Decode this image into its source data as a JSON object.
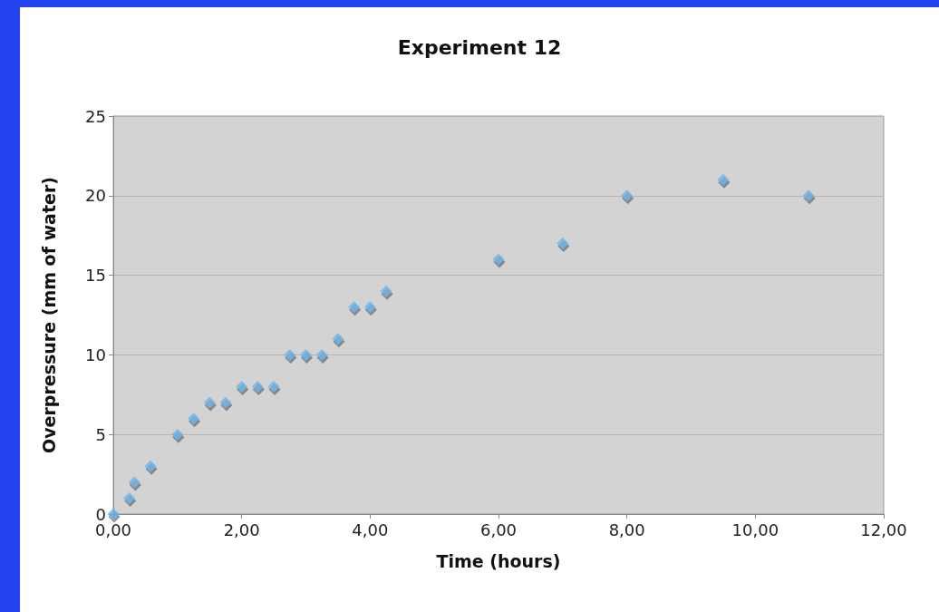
{
  "chart_data": {
    "type": "scatter",
    "title": "Experiment 12",
    "xlabel": "Time (hours)",
    "ylabel": "Overpressure (mm of water)",
    "x": [
      0,
      0.25,
      0.33,
      0.58,
      1,
      1.25,
      1.5,
      1.75,
      2,
      2.25,
      2.5,
      2.75,
      3,
      3.25,
      3.5,
      3.75,
      4,
      4.25,
      6,
      7,
      8,
      9.5,
      10.83
    ],
    "values": [
      0,
      1,
      2,
      3,
      5,
      6,
      7,
      7,
      8,
      8,
      8,
      10,
      10,
      10,
      11,
      13,
      13,
      14,
      16,
      17,
      20,
      21,
      20
    ],
    "color": "#6fb3e6",
    "marker": "diamond",
    "grid": "y",
    "xlim": [
      0,
      12
    ],
    "xticks": [
      {
        "value": 0,
        "label": "0,00"
      },
      {
        "value": 2,
        "label": "2,00"
      },
      {
        "value": 4,
        "label": "4,00"
      },
      {
        "value": 6,
        "label": "6,00"
      },
      {
        "value": 8,
        "label": "8,00"
      },
      {
        "value": 10,
        "label": "10,00"
      },
      {
        "value": 12,
        "label": "12,00"
      }
    ],
    "ylim": [
      0,
      25
    ],
    "yticks": [
      0,
      5,
      10,
      15,
      20,
      25
    ]
  }
}
